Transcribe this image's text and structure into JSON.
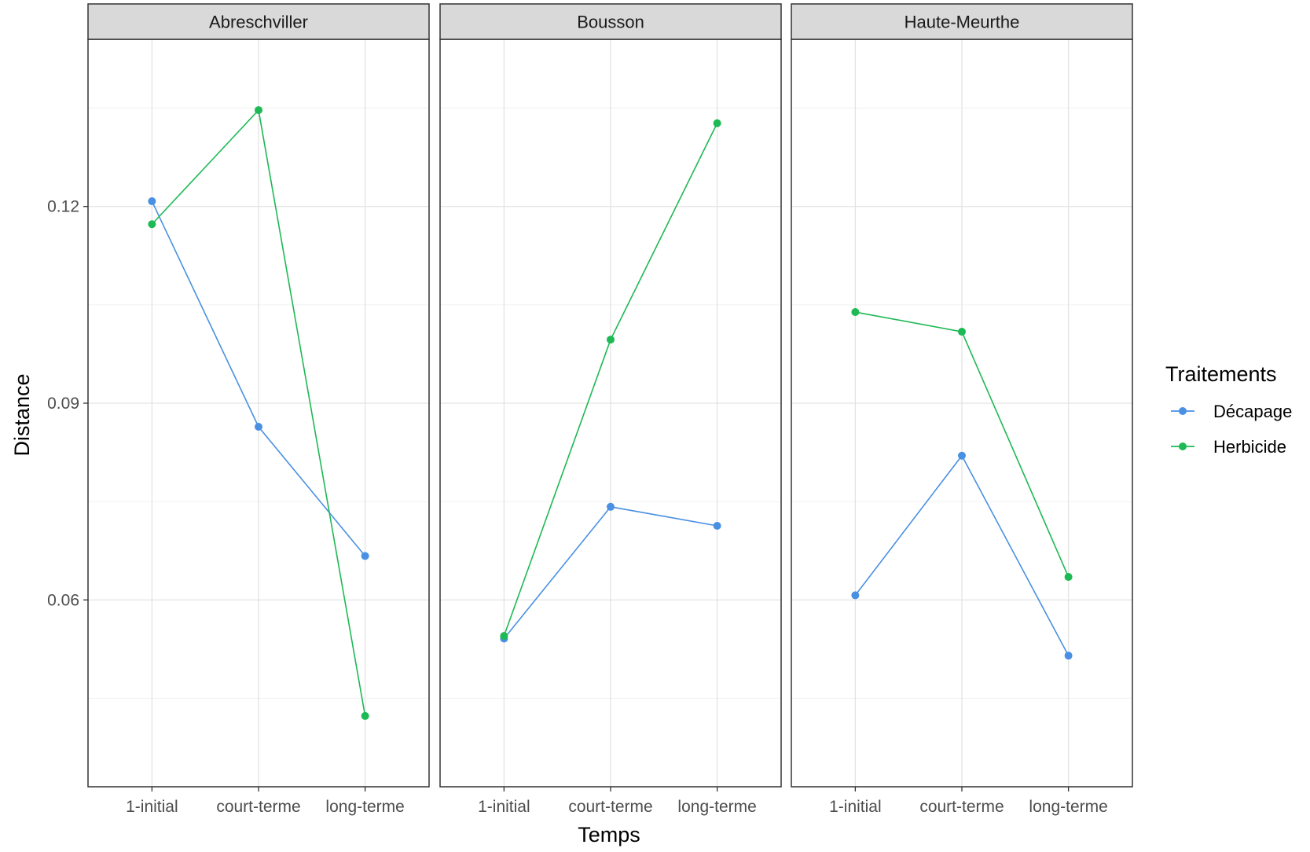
{
  "chart_data": {
    "type": "line",
    "facet_by": "site",
    "xlabel": "Temps",
    "ylabel": "Distance",
    "categories": [
      "1-initial",
      "court-terme",
      "long-terme"
    ],
    "y_ticks": [
      0.06,
      0.09,
      0.12
    ],
    "y_tick_labels": [
      "0.06",
      "0.09",
      "0.12"
    ],
    "ylim": [
      0.0315,
      0.1455
    ],
    "grid": true,
    "legend": {
      "title": "Traitements",
      "placement": "right",
      "entries": [
        {
          "name": "Décapage",
          "color": "#4A90E2"
        },
        {
          "name": "Herbicide",
          "color": "#1DB954"
        }
      ]
    },
    "panels": [
      {
        "title": "Abreschviller",
        "series": [
          {
            "name": "Décapage",
            "color": "#4A90E2",
            "values": [
              0.1208,
              0.0864,
              0.0667
            ]
          },
          {
            "name": "Herbicide",
            "color": "#1DB954",
            "values": [
              0.1173,
              0.1347,
              0.0423
            ]
          }
        ]
      },
      {
        "title": "Bousson",
        "series": [
          {
            "name": "Décapage",
            "color": "#4A90E2",
            "values": [
              0.0541,
              0.0742,
              0.0713
            ]
          },
          {
            "name": "Herbicide",
            "color": "#1DB954",
            "values": [
              0.0545,
              0.0997,
              0.1327
            ]
          }
        ]
      },
      {
        "title": "Haute-Meurthe",
        "series": [
          {
            "name": "Décapage",
            "color": "#4A90E2",
            "values": [
              0.0607,
              0.082,
              0.0515
            ]
          },
          {
            "name": "Herbicide",
            "color": "#1DB954",
            "values": [
              0.1039,
              0.1009,
              0.0635
            ]
          }
        ]
      }
    ]
  }
}
